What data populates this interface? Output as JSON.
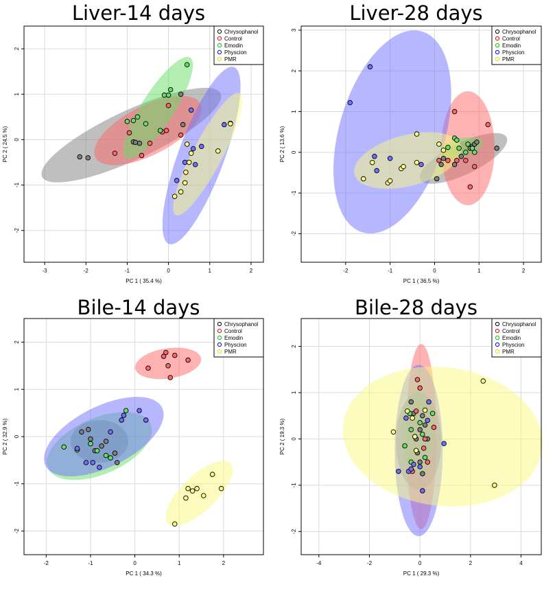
{
  "colors": {
    "Chrysophanol": "#808080",
    "Control": "#ff6666",
    "Emodin": "#66dd66",
    "Physcion": "#7070ff",
    "PMR": "#fafa80"
  },
  "legend_labels": [
    "Chrysophanol",
    "Control",
    "Emodin",
    "Physcion",
    "PMR"
  ],
  "chart_data": [
    {
      "type": "scatter",
      "title": "Liver-14 days",
      "xlabel": "PC 1 ( 35.4 %)",
      "ylabel": "PC 2 ( 24.5 %)",
      "xlim": [
        -3.5,
        2.3
      ],
      "ylim": [
        -2.7,
        2.5
      ],
      "xticks": [
        -3,
        -2,
        -1,
        0,
        1,
        2
      ],
      "yticks": [
        -2,
        -1,
        0,
        1,
        2
      ],
      "legend": "top-right",
      "series": [
        {
          "name": "Chrysophanol",
          "points": [
            [
              -2.15,
              -0.38
            ],
            [
              -1.95,
              -0.4
            ],
            [
              -0.85,
              -0.05
            ],
            [
              -0.8,
              -0.06
            ],
            [
              -0.7,
              -0.08
            ],
            [
              0.3,
              1.0
            ],
            [
              0.35,
              0.33
            ]
          ],
          "ellipse": {
            "cx": -0.9,
            "cy": 0.1,
            "rx": 2.35,
            "ry": 0.55,
            "angle": 23
          }
        },
        {
          "name": "Control",
          "points": [
            [
              -1.3,
              -0.3
            ],
            [
              -0.95,
              0.15
            ],
            [
              -0.65,
              -0.35
            ],
            [
              -0.45,
              -0.08
            ],
            [
              -0.15,
              0.17
            ],
            [
              -0.05,
              0.2
            ],
            [
              0.0,
              0.75
            ],
            [
              0.3,
              0.1
            ]
          ],
          "ellipse": {
            "cx": -0.5,
            "cy": 0.2,
            "rx": 1.4,
            "ry": 0.55,
            "angle": 25
          }
        },
        {
          "name": "Emodin",
          "points": [
            [
              -1.0,
              0.4
            ],
            [
              -0.85,
              0.42
            ],
            [
              -0.75,
              0.5
            ],
            [
              -0.55,
              0.35
            ],
            [
              -0.2,
              0.2
            ],
            [
              -0.1,
              0.98
            ],
            [
              0.0,
              0.98
            ],
            [
              0.05,
              1.1
            ],
            [
              0.45,
              1.65
            ]
          ],
          "ellipse": {
            "cx": -0.25,
            "cy": 0.7,
            "rx": 1.35,
            "ry": 0.38,
            "angle": 55
          }
        },
        {
          "name": "Physcion",
          "points": [
            [
              0.2,
              -0.9
            ],
            [
              0.65,
              -0.55
            ],
            [
              0.4,
              -0.5
            ],
            [
              0.6,
              -0.2
            ],
            [
              0.8,
              -0.15
            ],
            [
              0.55,
              0.65
            ],
            [
              1.35,
              0.33
            ],
            [
              1.5,
              0.36
            ]
          ],
          "ellipse": {
            "cx": 0.8,
            "cy": -0.35,
            "rx": 2.1,
            "ry": 0.55,
            "angle": 68
          }
        },
        {
          "name": "PMR",
          "points": [
            [
              0.45,
              -0.1
            ],
            [
              0.55,
              -0.3
            ],
            [
              0.5,
              -0.5
            ],
            [
              0.42,
              -0.72
            ],
            [
              0.4,
              -0.95
            ],
            [
              0.3,
              -1.15
            ],
            [
              0.15,
              -1.25
            ],
            [
              1.2,
              -0.25
            ],
            [
              1.5,
              0.35
            ]
          ],
          "ellipse": {
            "cx": 0.95,
            "cy": -0.32,
            "rx": 1.55,
            "ry": 0.35,
            "angle": 60
          }
        }
      ]
    },
    {
      "type": "scatter",
      "title": "Liver-28 days",
      "xlabel": "PC 1 ( 36.5 %)",
      "ylabel": "PC 2 ( 13.6 %)",
      "xlim": [
        -3.0,
        2.4
      ],
      "ylim": [
        -2.7,
        3.1
      ],
      "xticks": [
        -2,
        -1,
        0,
        1,
        2
      ],
      "yticks": [
        -2,
        -1,
        0,
        1,
        2,
        3
      ],
      "legend": "top-right",
      "series": [
        {
          "name": "Chrysophanol",
          "points": [
            [
              0.05,
              -0.65
            ],
            [
              0.15,
              -0.3
            ],
            [
              0.2,
              -0.15
            ],
            [
              0.45,
              -0.3
            ],
            [
              0.6,
              -0.1
            ],
            [
              0.8,
              0.1
            ],
            [
              0.85,
              0.15
            ],
            [
              0.9,
              0.2
            ],
            [
              0.95,
              0.25
            ],
            [
              1.4,
              0.1
            ]
          ],
          "ellipse": {
            "cx": 0.65,
            "cy": -0.15,
            "rx": 1.1,
            "ry": 0.38,
            "angle": 28
          }
        },
        {
          "name": "Control",
          "points": [
            [
              0.1,
              -0.2
            ],
            [
              0.3,
              -0.2
            ],
            [
              0.45,
              1.0
            ],
            [
              0.5,
              -0.2
            ],
            [
              0.7,
              -0.2
            ],
            [
              0.8,
              -0.85
            ],
            [
              0.9,
              -0.35
            ],
            [
              1.2,
              0.68
            ]
          ],
          "ellipse": {
            "cx": 0.75,
            "cy": 0.1,
            "rx": 0.6,
            "ry": 1.4,
            "angle": 0
          }
        },
        {
          "name": "Emodin",
          "points": [
            [
              0.3,
              0.12
            ],
            [
              0.45,
              0.35
            ],
            [
              0.5,
              0.3
            ],
            [
              0.55,
              0.1
            ],
            [
              0.7,
              0.0
            ],
            [
              0.75,
              0.2
            ],
            [
              0.85,
              0.1
            ],
            [
              0.9,
              0.0
            ]
          ],
          "ellipse": {
            "cx": 0.6,
            "cy": 0.12,
            "rx": 0.5,
            "ry": 0.22,
            "angle": 15
          }
        },
        {
          "name": "Physcion",
          "points": [
            [
              -1.9,
              1.22
            ],
            [
              -1.45,
              2.1
            ],
            [
              -1.35,
              -0.1
            ],
            [
              -1.3,
              -0.45
            ],
            [
              -1.0,
              -0.15
            ],
            [
              -0.3,
              -0.3
            ]
          ],
          "ellipse": {
            "cx": -0.95,
            "cy": 0.5,
            "rx": 1.2,
            "ry": 2.55,
            "angle": -18
          }
        },
        {
          "name": "PMR",
          "points": [
            [
              -1.6,
              -0.65
            ],
            [
              -1.4,
              -0.25
            ],
            [
              -1.05,
              -0.75
            ],
            [
              -1.0,
              -0.7
            ],
            [
              -0.75,
              -0.4
            ],
            [
              -0.7,
              -0.35
            ],
            [
              -0.4,
              0.45
            ],
            [
              -0.4,
              -0.25
            ],
            [
              0.1,
              0.2
            ],
            [
              0.2,
              0.05
            ]
          ],
          "ellipse": {
            "cx": -0.6,
            "cy": -0.2,
            "rx": 1.25,
            "ry": 0.62,
            "angle": 16
          }
        }
      ]
    },
    {
      "type": "scatter",
      "title": "Bile-14 days",
      "xlabel": "PC 1 ( 34.3 %)",
      "ylabel": "PC 2 ( 32.9 %)",
      "xlim": [
        -2.5,
        2.9
      ],
      "ylim": [
        -2.5,
        2.5
      ],
      "xticks": [
        -2,
        -1,
        0,
        1,
        2
      ],
      "yticks": [
        -2,
        -1,
        0,
        1,
        2
      ],
      "legend": "top-right",
      "series": [
        {
          "name": "Chrysophanol",
          "points": [
            [
              -1.2,
              0.1
            ],
            [
              -1.05,
              0.15
            ],
            [
              -1.0,
              -0.05
            ],
            [
              -0.9,
              -0.3
            ],
            [
              -0.75,
              -0.2
            ],
            [
              -0.65,
              -0.1
            ],
            [
              -0.45,
              -0.35
            ],
            [
              -0.4,
              -0.55
            ]
          ],
          "ellipse": {
            "cx": -0.8,
            "cy": -0.1,
            "rx": 0.65,
            "ry": 0.45,
            "angle": 0
          }
        },
        {
          "name": "Control",
          "points": [
            [
              0.3,
              1.45
            ],
            [
              0.65,
              1.7
            ],
            [
              0.7,
              1.78
            ],
            [
              0.75,
              1.5
            ],
            [
              0.8,
              1.25
            ],
            [
              0.9,
              1.72
            ],
            [
              1.2,
              1.62
            ]
          ],
          "ellipse": {
            "cx": 0.75,
            "cy": 1.55,
            "rx": 0.75,
            "ry": 0.32,
            "angle": 8
          }
        },
        {
          "name": "Emodin",
          "points": [
            [
              -1.6,
              -0.22
            ],
            [
              -1.3,
              -0.28
            ],
            [
              -1.0,
              -0.15
            ],
            [
              -0.85,
              -0.3
            ],
            [
              -0.65,
              -0.4
            ],
            [
              -0.55,
              -0.45
            ],
            [
              -0.2,
              0.55
            ]
          ],
          "ellipse": {
            "cx": -0.8,
            "cy": -0.2,
            "rx": 1.25,
            "ry": 0.6,
            "angle": 22
          }
        },
        {
          "name": "Physcion",
          "points": [
            [
              -1.3,
              -0.25
            ],
            [
              -1.1,
              -0.55
            ],
            [
              -0.95,
              -0.55
            ],
            [
              -0.8,
              -0.65
            ],
            [
              -0.55,
              0.1
            ],
            [
              -0.3,
              0.35
            ],
            [
              -0.25,
              0.45
            ],
            [
              0.1,
              0.55
            ],
            [
              0.25,
              0.35
            ]
          ],
          "ellipse": {
            "cx": -0.7,
            "cy": 0.0,
            "rx": 1.45,
            "ry": 0.65,
            "angle": 25
          }
        },
        {
          "name": "PMR",
          "points": [
            [
              0.9,
              -1.85
            ],
            [
              1.15,
              -1.3
            ],
            [
              1.2,
              -1.1
            ],
            [
              1.3,
              -1.15
            ],
            [
              1.4,
              -1.1
            ],
            [
              1.55,
              -1.25
            ],
            [
              1.75,
              -0.8
            ],
            [
              1.95,
              -1.1
            ]
          ],
          "ellipse": {
            "cx": 1.45,
            "cy": -1.2,
            "rx": 0.95,
            "ry": 0.38,
            "angle": 42
          }
        }
      ]
    },
    {
      "type": "scatter",
      "title": "Bile-28 days",
      "xlabel": "PC 1 ( 29.3 %)",
      "ylabel": "PC 2 ( 19.3 %)",
      "xlim": [
        -4.7,
        4.8
      ],
      "ylim": [
        -2.5,
        2.6
      ],
      "xticks": [
        -4,
        -2,
        0,
        2,
        4
      ],
      "yticks": [
        -2,
        -1,
        0,
        1,
        2
      ],
      "legend": "top-right",
      "series": [
        {
          "name": "Chrysophanol",
          "points": [
            [
              -0.35,
              0.8
            ],
            [
              -0.25,
              0.55
            ],
            [
              -0.15,
              0.0
            ],
            [
              0.0,
              0.2
            ],
            [
              0.1,
              0.5
            ],
            [
              0.2,
              0.3
            ],
            [
              0.3,
              0.0
            ],
            [
              -0.1,
              -0.3
            ],
            [
              0.0,
              -0.5
            ],
            [
              0.1,
              -0.75
            ]
          ],
          "ellipse": {
            "cx": -0.05,
            "cy": -0.05,
            "rx": 0.9,
            "ry": 1.05,
            "angle": 0
          }
        },
        {
          "name": "Control",
          "points": [
            [
              -0.1,
              1.28
            ],
            [
              0.0,
              1.1
            ],
            [
              0.2,
              0.0
            ],
            [
              0.15,
              -0.2
            ],
            [
              0.3,
              -0.5
            ],
            [
              0.55,
              0.25
            ],
            [
              -0.3,
              -0.7
            ],
            [
              -0.15,
              0.6
            ]
          ],
          "ellipse": {
            "cx": 0.05,
            "cy": 0.05,
            "rx": 0.6,
            "ry": 2.0,
            "angle": 0
          }
        },
        {
          "name": "Emodin",
          "points": [
            [
              -0.6,
              -0.15
            ],
            [
              -0.4,
              0.55
            ],
            [
              -0.35,
              0.2
            ],
            [
              -0.2,
              0.05
            ],
            [
              0.0,
              0.35
            ],
            [
              0.1,
              0.1
            ],
            [
              0.2,
              -0.4
            ],
            [
              0.5,
              0.55
            ],
            [
              -0.35,
              -0.5
            ]
          ],
          "ellipse": {
            "cx": -0.1,
            "cy": 0.15,
            "rx": 0.65,
            "ry": 0.9,
            "angle": 0
          }
        },
        {
          "name": "Physcion",
          "points": [
            [
              -0.85,
              -0.7
            ],
            [
              -0.55,
              0.45
            ],
            [
              -0.45,
              -0.7
            ],
            [
              -0.35,
              -0.65
            ],
            [
              -0.25,
              -0.55
            ],
            [
              0.0,
              -0.6
            ],
            [
              0.1,
              -1.12
            ],
            [
              0.35,
              0.8
            ],
            [
              0.95,
              -0.1
            ],
            [
              0.3,
              0.4
            ]
          ],
          "ellipse": {
            "cx": -0.05,
            "cy": -0.25,
            "rx": 0.95,
            "ry": 1.85,
            "angle": 0
          }
        },
        {
          "name": "PMR",
          "points": [
            [
              -1.05,
              0.15
            ],
            [
              -0.5,
              0.6
            ],
            [
              -0.3,
              0.45
            ],
            [
              -0.2,
              0.05
            ],
            [
              0.2,
              0.62
            ],
            [
              -0.15,
              -0.25
            ],
            [
              2.5,
              1.25
            ],
            [
              2.95,
              -1.0
            ]
          ],
          "ellipse": {
            "cx": 0.9,
            "cy": 0.05,
            "rx": 3.95,
            "ry": 1.5,
            "angle": -4
          }
        }
      ]
    }
  ]
}
